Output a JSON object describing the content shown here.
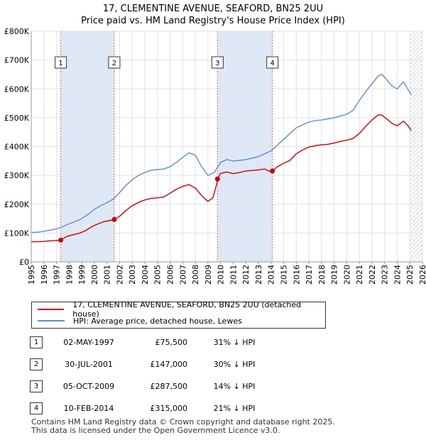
{
  "chart_data": {
    "type": "line",
    "title": "17, CLEMENTINE AVENUE, SEAFORD, BN25 2UU",
    "subtitle": "Price paid vs. HM Land Registry's House Price Index (HPI)",
    "xlim": [
      1995,
      2026
    ],
    "ylim": [
      0,
      800000
    ],
    "x_ticks": [
      "1995",
      "1996",
      "1997",
      "1998",
      "1999",
      "2000",
      "2001",
      "2002",
      "2003",
      "2004",
      "2005",
      "2006",
      "2007",
      "2008",
      "2009",
      "2010",
      "2011",
      "2012",
      "2013",
      "2014",
      "2015",
      "2016",
      "2017",
      "2018",
      "2019",
      "2020",
      "2021",
      "2022",
      "2023",
      "2024",
      "2025",
      "2026"
    ],
    "y_ticks": [
      {
        "value": 0,
        "label": "£0"
      },
      {
        "value": 100000,
        "label": "£100K"
      },
      {
        "value": 200000,
        "label": "£200K"
      },
      {
        "value": 300000,
        "label": "£300K"
      },
      {
        "value": 400000,
        "label": "£400K"
      },
      {
        "value": 500000,
        "label": "£500K"
      },
      {
        "value": 600000,
        "label": "£600K"
      },
      {
        "value": 700000,
        "label": "£700K"
      },
      {
        "value": 800000,
        "label": "£800K"
      }
    ],
    "grid": true,
    "hatched_from": 2025.0,
    "shaded_periods": [
      [
        1997.34,
        2001.58
      ],
      [
        2009.76,
        2014.11
      ]
    ],
    "series": [
      {
        "name": "17, CLEMENTINE AVENUE, SEAFORD, BN25 2UU (detached house)",
        "color": "#cc0000",
        "x": [
          1995.0,
          1995.5,
          1996.0,
          1996.5,
          1997.0,
          1997.34,
          1997.8,
          1998.3,
          1998.8,
          1999.3,
          1999.8,
          2000.3,
          2000.8,
          2001.3,
          2001.58,
          2002.0,
          2002.5,
          2003.0,
          2003.5,
          2004.0,
          2004.5,
          2005.0,
          2005.5,
          2006.0,
          2006.5,
          2007.0,
          2007.5,
          2008.0,
          2008.5,
          2009.0,
          2009.4,
          2009.7,
          2009.76,
          2010.0,
          2010.5,
          2011.0,
          2011.5,
          2012.0,
          2012.5,
          2013.0,
          2013.5,
          2014.0,
          2014.11,
          2014.5,
          2015.0,
          2015.5,
          2016.0,
          2016.5,
          2017.0,
          2017.5,
          2018.0,
          2018.5,
          2019.0,
          2019.5,
          2020.0,
          2020.5,
          2021.0,
          2021.5,
          2022.0,
          2022.5,
          2022.8,
          2023.2,
          2023.6,
          2024.0,
          2024.5,
          2024.9,
          2025.1
        ],
        "y": [
          70000,
          70000,
          71000,
          73000,
          74000,
          75500,
          88000,
          94000,
          99000,
          108000,
          122000,
          132000,
          140000,
          144000,
          147000,
          158000,
          178000,
          195000,
          206000,
          215000,
          220000,
          222000,
          225000,
          238000,
          252000,
          262000,
          268000,
          256000,
          230000,
          210000,
          222000,
          270000,
          287500,
          307000,
          312000,
          306000,
          310000,
          315000,
          317000,
          319000,
          322000,
          312000,
          315000,
          330000,
          342000,
          352000,
          375000,
          388000,
          398000,
          403000,
          406000,
          408000,
          412000,
          418000,
          422000,
          428000,
          445000,
          470000,
          492000,
          510000,
          508000,
          495000,
          480000,
          472000,
          488000,
          470000,
          455000
        ]
      },
      {
        "name": "HPI: Average price, detached house, Lewes",
        "color": "#5b8fcf",
        "x": [
          1995.0,
          1995.5,
          1996.0,
          1996.5,
          1997.0,
          1997.5,
          1998.0,
          1998.5,
          1999.0,
          1999.5,
          2000.0,
          2000.5,
          2001.0,
          2001.5,
          2002.0,
          2002.5,
          2003.0,
          2003.5,
          2004.0,
          2004.5,
          2005.0,
          2005.5,
          2006.0,
          2006.5,
          2007.0,
          2007.5,
          2008.0,
          2008.5,
          2009.0,
          2009.5,
          2010.0,
          2010.5,
          2011.0,
          2011.5,
          2012.0,
          2012.5,
          2013.0,
          2013.5,
          2014.0,
          2014.5,
          2015.0,
          2015.5,
          2016.0,
          2016.5,
          2017.0,
          2017.5,
          2018.0,
          2018.5,
          2019.0,
          2019.5,
          2020.0,
          2020.5,
          2021.0,
          2021.5,
          2022.0,
          2022.5,
          2022.8,
          2023.2,
          2023.6,
          2024.0,
          2024.5,
          2024.9,
          2025.1
        ],
        "y": [
          102000,
          103000,
          106000,
          110000,
          114000,
          122000,
          132000,
          140000,
          150000,
          165000,
          182000,
          195000,
          205000,
          218000,
          240000,
          265000,
          285000,
          300000,
          310000,
          318000,
          320000,
          322000,
          330000,
          345000,
          362000,
          378000,
          370000,
          330000,
          300000,
          310000,
          345000,
          355000,
          350000,
          352000,
          355000,
          360000,
          365000,
          375000,
          385000,
          405000,
          425000,
          445000,
          465000,
          475000,
          485000,
          490000,
          492000,
          496000,
          500000,
          506000,
          512000,
          525000,
          560000,
          590000,
          618000,
          645000,
          650000,
          630000,
          610000,
          600000,
          625000,
          595000,
          580000
        ]
      }
    ],
    "sales": [
      {
        "label": "1",
        "x": 1997.34,
        "y": 75500,
        "date": "02-MAY-1997",
        "price": "£75,500",
        "hpi": "31% ↓ HPI"
      },
      {
        "label": "2",
        "x": 2001.58,
        "y": 147000,
        "date": "30-JUL-2001",
        "price": "£147,000",
        "hpi": "30% ↓ HPI"
      },
      {
        "label": "3",
        "x": 2009.76,
        "y": 287500,
        "date": "05-OCT-2009",
        "price": "£287,500",
        "hpi": "14% ↓ HPI"
      },
      {
        "label": "4",
        "x": 2014.11,
        "y": 315000,
        "date": "10-FEB-2014",
        "price": "£315,000",
        "hpi": "21% ↓ HPI"
      }
    ],
    "legend": [
      {
        "label": "17, CLEMENTINE AVENUE, SEAFORD, BN25 2UU (detached house)",
        "color": "#cc0000"
      },
      {
        "label": "HPI: Average price, detached house, Lewes",
        "color": "#5b8fcf"
      }
    ]
  },
  "footer": {
    "line1": "Contains HM Land Registry data © Crown copyright and database right 2025.",
    "line2": "This data is licensed under the Open Government Licence v3.0."
  }
}
